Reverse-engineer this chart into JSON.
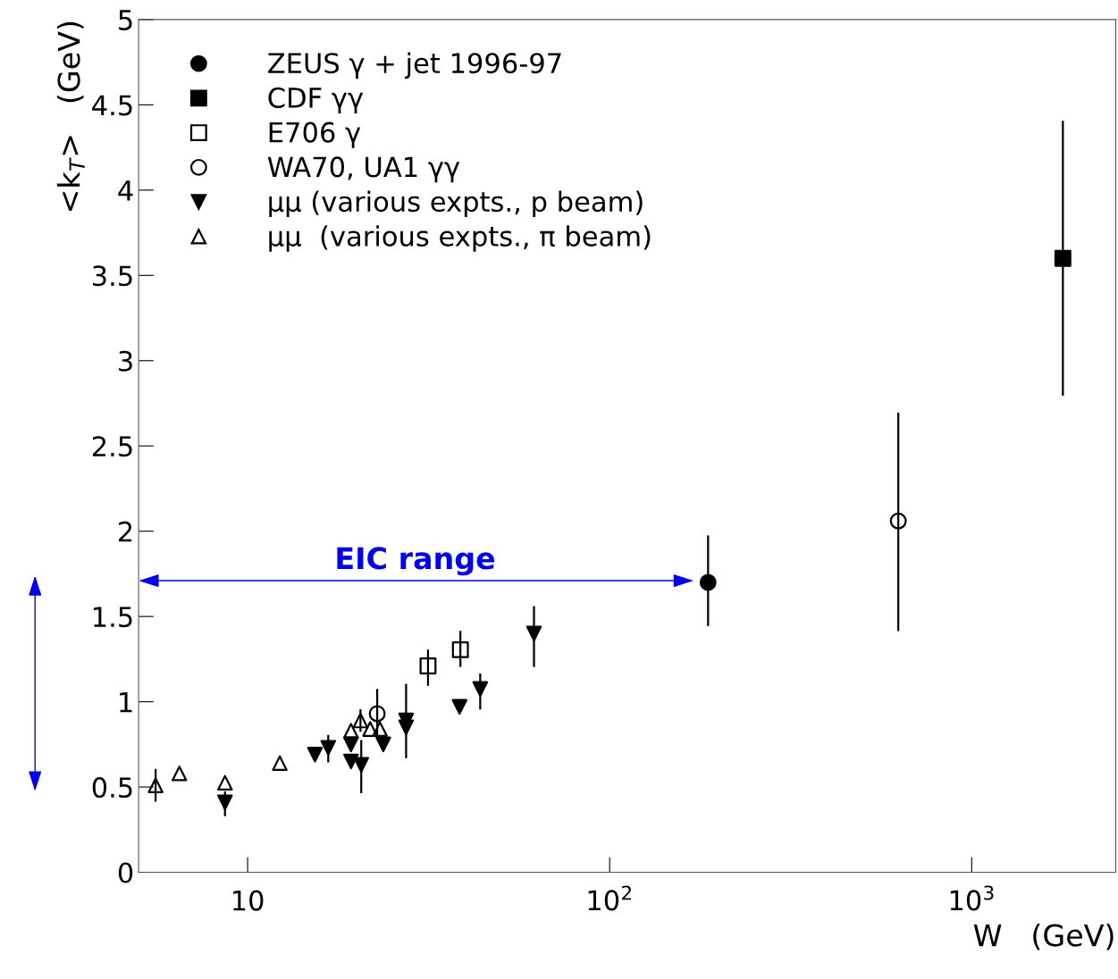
{
  "chart_data": {
    "type": "scatter",
    "xlabel": "W   (GeV)",
    "ylabel": "<k$_{T}$>   (GeV)",
    "log": "x",
    "xlim": [
      5,
      2500
    ],
    "ylim": [
      0,
      5
    ],
    "xticks": [
      {
        "value": 10,
        "label": "10"
      },
      {
        "value": 100,
        "label": "10$^{2}$"
      },
      {
        "value": 1000,
        "label": "10$^{3}$"
      }
    ],
    "yticks": [
      0,
      0.5,
      1,
      1.5,
      2,
      2.5,
      3,
      3.5,
      4,
      4.5,
      5
    ],
    "grid": false,
    "legend": "top left",
    "series": [
      {
        "name": "ZEUS γ + jet 1996-97",
        "color": "#000000",
        "marker": "circle",
        "x": [
          187
        ],
        "values": [
          1.7
        ],
        "errors": [
          [
            1.45,
            1.97
          ]
        ]
      },
      {
        "name": "CDF γγ",
        "color": "#000000",
        "marker": "square",
        "x": [
          1786
        ],
        "values": [
          3.6
        ],
        "errors": [
          [
            2.8,
            4.4
          ]
        ]
      },
      {
        "name": "E706 γ",
        "color": "#000000",
        "marker": "square-open",
        "x": [
          31.5,
          38.7
        ],
        "values": [
          1.21,
          1.305
        ],
        "errors": [
          [
            1.1,
            1.3
          ],
          [
            1.21,
            1.41
          ]
        ]
      },
      {
        "name": "WA70, UA1 γγ",
        "color": "#000000",
        "marker": "circle-open",
        "x": [
          22.8,
          627
        ],
        "values": [
          0.93,
          2.06
        ],
        "errors": [
          [
            0.79,
            1.07
          ],
          [
            1.42,
            2.69
          ]
        ]
      },
      {
        "name": "μμ (various expts., p beam)",
        "color": "#000000",
        "marker": "triangle-down",
        "x": [
          8.66,
          15.35,
          16.7,
          19.3,
          19.3,
          20.6,
          23.7,
          27.4,
          27.4,
          38.5,
          43.9,
          61.8
        ],
        "values": [
          0.41,
          0.69,
          0.73,
          0.75,
          0.65,
          0.63,
          0.75,
          0.89,
          0.85,
          0.97,
          1.075,
          1.4
        ],
        "errors": [
          [
            0.335,
            0.47
          ],
          null,
          [
            0.65,
            0.8
          ],
          null,
          null,
          [
            0.47,
            0.77
          ],
          null,
          null,
          [
            0.675,
            1.1
          ],
          null,
          [
            0.96,
            1.16
          ],
          [
            1.21,
            1.555
          ]
        ]
      },
      {
        "name": "μμ  (various expts., π beam)",
        "color": "#000000",
        "marker": "triangle-open",
        "x": [
          5.57,
          6.48,
          8.66,
          12.27,
          19.3,
          20.5,
          21.8,
          23.2
        ],
        "values": [
          0.51,
          0.58,
          0.525,
          0.64,
          0.83,
          0.89,
          0.84,
          0.84
        ],
        "errors": [
          [
            0.42,
            0.6
          ],
          null,
          null,
          null,
          null,
          [
            0.83,
            0.95
          ],
          null,
          null
        ]
      }
    ],
    "annotations": [
      "EIC range"
    ]
  }
}
